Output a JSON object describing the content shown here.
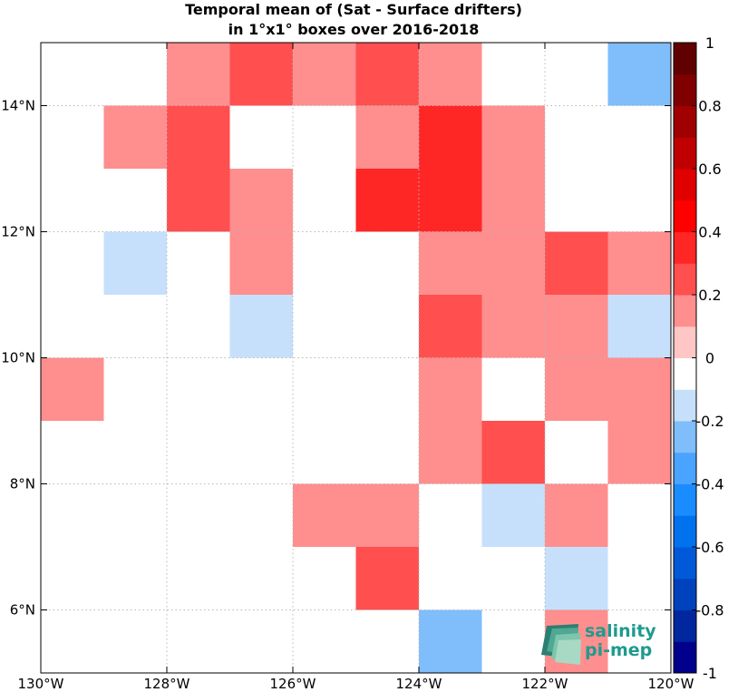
{
  "chart_data": {
    "type": "heatmap",
    "title_line1": "Temporal mean of (Sat - Surface drifters)",
    "title_line2": "in 1°x1° boxes over 2016-2018",
    "xlim": [
      -130,
      -120
    ],
    "ylim": [
      5,
      15
    ],
    "x_ticks": [
      {
        "value": -130,
        "label": "130°W"
      },
      {
        "value": -128,
        "label": "128°W"
      },
      {
        "value": -126,
        "label": "126°W"
      },
      {
        "value": -124,
        "label": "124°W"
      },
      {
        "value": -122,
        "label": "122°W"
      },
      {
        "value": -120,
        "label": "120°W"
      }
    ],
    "y_ticks": [
      {
        "value": 6,
        "label": "6°N"
      },
      {
        "value": 8,
        "label": "8°N"
      },
      {
        "value": 10,
        "label": "10°N"
      },
      {
        "value": 12,
        "label": "12°N"
      },
      {
        "value": 14,
        "label": "14°N"
      }
    ],
    "grid": true,
    "colorbar": {
      "range": [
        -1,
        1
      ],
      "placement": "right",
      "ticks": [
        {
          "value": 1,
          "label": "1"
        },
        {
          "value": 0.8,
          "label": "0.8"
        },
        {
          "value": 0.6,
          "label": "0.6"
        },
        {
          "value": 0.4,
          "label": "0.4"
        },
        {
          "value": 0.2,
          "label": "0.2"
        },
        {
          "value": 0,
          "label": "0"
        },
        {
          "value": -0.2,
          "label": "-0.2"
        },
        {
          "value": -0.4,
          "label": "-0.4"
        },
        {
          "value": -0.6,
          "label": "-0.6"
        },
        {
          "value": -0.8,
          "label": "-0.8"
        },
        {
          "value": -1,
          "label": "-1"
        }
      ],
      "colors": [
        "#00008c",
        "#00279e",
        "#0042be",
        "#0059d8",
        "#0072ee",
        "#1a8cff",
        "#4aa3ff",
        "#7fbdfb",
        "#c6e0fc",
        "#ffffff",
        "#ffc6c6",
        "#ff8e8e",
        "#ff4f4f",
        "#ff2626",
        "#ff0000",
        "#e00000",
        "#c00000",
        "#a00000",
        "#800000",
        "#600000"
      ]
    },
    "cells": [
      {
        "lon": -128,
        "lat": 14,
        "value": 0.15
      },
      {
        "lon": -127,
        "lat": 14,
        "value": 0.25
      },
      {
        "lon": -126,
        "lat": 14,
        "value": 0.15
      },
      {
        "lon": -125,
        "lat": 14,
        "value": 0.25
      },
      {
        "lon": -124,
        "lat": 14,
        "value": 0.15
      },
      {
        "lon": -121,
        "lat": 14,
        "value": -0.25
      },
      {
        "lon": -129,
        "lat": 13,
        "value": 0.15
      },
      {
        "lon": -128,
        "lat": 13,
        "value": 0.25
      },
      {
        "lon": -125,
        "lat": 13,
        "value": 0.15
      },
      {
        "lon": -124,
        "lat": 13,
        "value": 0.35
      },
      {
        "lon": -123,
        "lat": 13,
        "value": 0.15
      },
      {
        "lon": -128,
        "lat": 12,
        "value": 0.25
      },
      {
        "lon": -127,
        "lat": 12,
        "value": 0.15
      },
      {
        "lon": -125,
        "lat": 12,
        "value": 0.35
      },
      {
        "lon": -124,
        "lat": 12,
        "value": 0.35
      },
      {
        "lon": -123,
        "lat": 12,
        "value": 0.15
      },
      {
        "lon": -129,
        "lat": 11,
        "value": -0.15
      },
      {
        "lon": -127,
        "lat": 11,
        "value": 0.15
      },
      {
        "lon": -124,
        "lat": 11,
        "value": 0.15
      },
      {
        "lon": -123,
        "lat": 11,
        "value": 0.15
      },
      {
        "lon": -122,
        "lat": 11,
        "value": 0.25
      },
      {
        "lon": -121,
        "lat": 11,
        "value": 0.15
      },
      {
        "lon": -127,
        "lat": 10,
        "value": -0.15
      },
      {
        "lon": -124,
        "lat": 10,
        "value": 0.25
      },
      {
        "lon": -123,
        "lat": 10,
        "value": 0.15
      },
      {
        "lon": -122,
        "lat": 10,
        "value": 0.15
      },
      {
        "lon": -121,
        "lat": 10,
        "value": -0.15
      },
      {
        "lon": -130,
        "lat": 9,
        "value": 0.15
      },
      {
        "lon": -124,
        "lat": 9,
        "value": 0.15
      },
      {
        "lon": -122,
        "lat": 9,
        "value": 0.15
      },
      {
        "lon": -121,
        "lat": 9,
        "value": 0.15
      },
      {
        "lon": -124,
        "lat": 8,
        "value": 0.15
      },
      {
        "lon": -123,
        "lat": 8,
        "value": 0.25
      },
      {
        "lon": -121,
        "lat": 8,
        "value": 0.15
      },
      {
        "lon": -126,
        "lat": 7,
        "value": 0.15
      },
      {
        "lon": -125,
        "lat": 7,
        "value": 0.15
      },
      {
        "lon": -123,
        "lat": 7,
        "value": -0.15
      },
      {
        "lon": -122,
        "lat": 7,
        "value": 0.15
      },
      {
        "lon": -125,
        "lat": 6,
        "value": 0.25
      },
      {
        "lon": -122,
        "lat": 6,
        "value": -0.15
      },
      {
        "lon": -124,
        "lat": 5,
        "value": -0.25
      },
      {
        "lon": -122,
        "lat": 5,
        "value": 0.15
      }
    ]
  },
  "logo": {
    "line1": "salinity",
    "line2": "pi-mep",
    "color": "#1f9a8f"
  }
}
